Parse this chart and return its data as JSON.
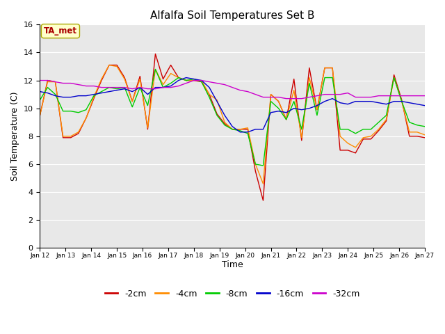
{
  "title": "Alfalfa Soil Temperatures Set B",
  "xlabel": "Time",
  "ylabel": "Soil Temperature (C)",
  "ylim": [
    0,
    16
  ],
  "yticks": [
    0,
    2,
    4,
    6,
    8,
    10,
    12,
    14,
    16
  ],
  "bg_color": "#e8e8e8",
  "annotation_label": "TA_met",
  "annotation_color": "#aa0000",
  "annotation_bg": "#ffffcc",
  "series": {
    "-2cm": {
      "color": "#cc0000",
      "data": [
        9.5,
        12.0,
        11.9,
        7.9,
        7.9,
        8.2,
        9.3,
        10.7,
        12.0,
        13.1,
        13.1,
        12.2,
        10.5,
        12.3,
        8.5,
        13.9,
        12.1,
        13.1,
        12.2,
        12.0,
        12.0,
        11.9,
        11.0,
        9.6,
        8.9,
        8.5,
        8.5,
        8.5,
        5.5,
        3.4,
        11.0,
        10.5,
        9.2,
        12.1,
        7.7,
        12.9,
        9.9,
        12.9,
        12.9,
        7.0,
        7.0,
        6.8,
        7.8,
        7.8,
        8.4,
        9.1,
        12.4,
        10.6,
        8.0,
        8.0,
        7.9
      ]
    },
    "-4cm": {
      "color": "#ff8c00",
      "data": [
        9.5,
        11.9,
        11.9,
        8.0,
        8.0,
        8.3,
        9.3,
        10.8,
        12.1,
        13.1,
        13.0,
        12.1,
        10.5,
        12.1,
        8.6,
        12.8,
        11.7,
        12.5,
        12.2,
        12.0,
        12.0,
        12.0,
        11.0,
        10.6,
        9.0,
        8.5,
        8.5,
        8.6,
        6.0,
        4.6,
        11.0,
        10.5,
        9.2,
        11.3,
        7.9,
        12.2,
        9.9,
        12.9,
        12.9,
        8.0,
        7.5,
        7.2,
        7.9,
        8.0,
        8.5,
        9.2,
        12.2,
        10.5,
        8.3,
        8.3,
        8.1
      ]
    },
    "-8cm": {
      "color": "#00cc00",
      "data": [
        10.6,
        11.5,
        11.0,
        9.8,
        9.8,
        9.7,
        9.9,
        10.9,
        11.2,
        11.5,
        11.4,
        11.5,
        10.1,
        11.5,
        10.2,
        12.8,
        11.5,
        11.8,
        12.2,
        12.0,
        12.1,
        11.9,
        10.8,
        9.5,
        8.8,
        8.5,
        8.4,
        8.2,
        6.0,
        5.9,
        10.5,
        10.0,
        9.2,
        10.5,
        8.5,
        11.8,
        9.5,
        12.2,
        12.2,
        8.5,
        8.5,
        8.2,
        8.5,
        8.5,
        9.0,
        9.5,
        12.2,
        10.5,
        9.0,
        8.8,
        8.7
      ]
    },
    "-16cm": {
      "color": "#0000cc",
      "data": [
        11.2,
        11.1,
        10.9,
        10.8,
        10.8,
        10.9,
        10.9,
        11.0,
        11.1,
        11.2,
        11.3,
        11.4,
        11.2,
        11.5,
        11.0,
        11.5,
        11.5,
        11.6,
        12.0,
        12.2,
        12.1,
        12.0,
        11.5,
        10.5,
        9.5,
        8.7,
        8.3,
        8.3,
        8.5,
        8.5,
        9.7,
        9.8,
        9.7,
        10.0,
        9.9,
        10.0,
        10.2,
        10.5,
        10.7,
        10.4,
        10.3,
        10.5,
        10.5,
        10.5,
        10.4,
        10.3,
        10.5,
        10.5,
        10.4,
        10.3,
        10.2
      ]
    },
    "-32cm": {
      "color": "#cc00cc",
      "data": [
        12.0,
        12.0,
        11.9,
        11.8,
        11.8,
        11.7,
        11.6,
        11.6,
        11.5,
        11.5,
        11.5,
        11.5,
        11.4,
        11.5,
        11.4,
        11.4,
        11.5,
        11.5,
        11.6,
        11.8,
        12.0,
        12.0,
        11.9,
        11.8,
        11.7,
        11.5,
        11.3,
        11.2,
        11.0,
        10.8,
        10.8,
        10.8,
        10.7,
        10.7,
        10.7,
        10.8,
        10.9,
        11.0,
        11.0,
        11.0,
        11.1,
        10.8,
        10.8,
        10.8,
        10.9,
        10.9,
        10.9,
        10.9,
        10.9,
        10.9,
        10.9
      ]
    }
  },
  "xtick_positions": [
    0,
    3.33,
    6.67,
    10.0,
    13.33,
    16.67,
    20.0,
    23.33,
    26.67,
    30.0,
    33.33,
    36.67,
    40.0,
    43.33,
    46.67,
    50.0
  ],
  "xtick_labels": [
    "Jan 12",
    "Jan 13",
    "Jan 14",
    "Jan 15",
    "Jan 16",
    "Jan 17",
    "Jan 18",
    "Jan 19",
    "Jan 20",
    "Jan 21",
    "Jan 22",
    "Jan 23",
    "Jan 24",
    "Jan 25",
    "Jan 26",
    "Jan 27"
  ]
}
